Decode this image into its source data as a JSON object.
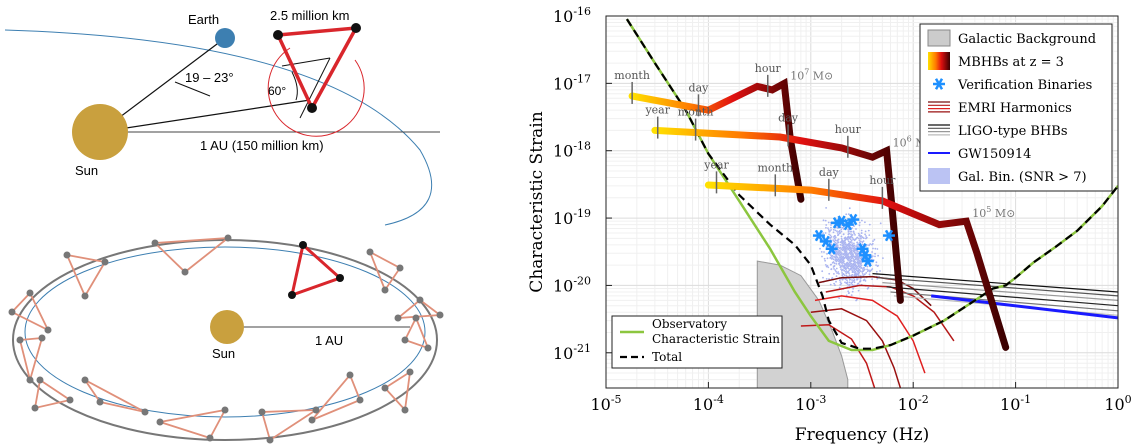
{
  "diagram": {
    "earth_label": "Earth",
    "arm_label": "2.5 million km",
    "angle_label": "19 – 23°",
    "triangle_angle": "60°",
    "sun_label": "Sun",
    "au_label_top": "1 AU (150 million km)",
    "sun_label_bottom": "Sun",
    "au_label_bottom": "1 AU",
    "colors": {
      "sun": "#c9a03e",
      "earth": "#3d7fb1",
      "constellation": "#d9262c",
      "orbit": "#3d7fb1",
      "ring": "#777777",
      "ring_triangles": "#e0907a"
    }
  },
  "chart_data": {
    "type": "line",
    "xlabel": "Frequency (Hz)",
    "ylabel": "Characteristic Strain",
    "x_scale": "log",
    "y_scale": "log",
    "xlim": [
      1e-05,
      1
    ],
    "ylim": [
      3e-22,
      1e-16
    ],
    "x_ticks": [
      {
        "v": 1e-05,
        "base": "10",
        "exp": "-5"
      },
      {
        "v": 0.0001,
        "base": "10",
        "exp": "-4"
      },
      {
        "v": 0.001,
        "base": "10",
        "exp": "-3"
      },
      {
        "v": 0.01,
        "base": "10",
        "exp": "-2"
      },
      {
        "v": 0.1,
        "base": "10",
        "exp": "-1"
      },
      {
        "v": 1,
        "base": "10",
        "exp": "0"
      }
    ],
    "y_ticks": [
      {
        "v": 1e-21,
        "base": "10",
        "exp": "-21"
      },
      {
        "v": 1e-20,
        "base": "10",
        "exp": "-20"
      },
      {
        "v": 1e-19,
        "base": "10",
        "exp": "-19"
      },
      {
        "v": 1e-18,
        "base": "10",
        "exp": "-18"
      },
      {
        "v": 1e-17,
        "base": "10",
        "exp": "-17"
      },
      {
        "v": 1e-16,
        "base": "10",
        "exp": "-16"
      }
    ],
    "grid": true,
    "legend_upper": {
      "placement": "top-right",
      "entries": [
        {
          "label": "Galactic Background",
          "symbol": "patch",
          "color": "#cccccc"
        },
        {
          "label": "MBHBs at z = 3",
          "symbol": "gradient"
        },
        {
          "label": "Verification Binaries",
          "symbol": "star",
          "color": "#1e90ff"
        },
        {
          "label": "EMRI Harmonics",
          "symbol": "lines-red"
        },
        {
          "label": "LIGO-type BHBs",
          "symbol": "lines-gray"
        },
        {
          "label": "GW150914",
          "symbol": "line",
          "color": "#1a1aff"
        },
        {
          "label": "Gal. Bin. (SNR > 7)",
          "symbol": "dots",
          "color": "#aab4f0"
        }
      ]
    },
    "legend_lower": {
      "placement": "bottom-left",
      "entries": [
        {
          "label": "Observatory",
          "label2": "Characteristic Strain",
          "symbol": "line",
          "color": "#8cc63f"
        },
        {
          "label": "Total",
          "symbol": "dashed",
          "color": "#000000"
        }
      ]
    },
    "mbhb_tracks": [
      {
        "label": "10",
        "label_exp": "7",
        "x": [
          1.8e-05,
          0.0001,
          0.0003,
          0.00042,
          0.00055,
          0.00063,
          0.0008
        ],
        "y": [
          6.5e-18,
          4e-18,
          9e-18,
          8e-18,
          1e-17,
          1.5e-18,
          1.9e-19
        ]
      },
      {
        "label": "10",
        "label_exp": "6",
        "x": [
          3e-05,
          0.0005,
          0.002,
          0.004,
          0.0055,
          0.0062,
          0.0075
        ],
        "y": [
          2e-18,
          1.6e-18,
          1.1e-18,
          8e-19,
          1e-18,
          1.5e-19,
          6e-21
        ]
      },
      {
        "label": "10",
        "label_exp": "5",
        "x": [
          0.0001,
          0.001,
          0.005,
          0.018,
          0.033,
          0.042,
          0.08
        ],
        "y": [
          3.1e-19,
          2.6e-19,
          1.8e-19,
          8e-20,
          9e-20,
          3e-20,
          1.2e-21
        ]
      }
    ],
    "time_markers": [
      {
        "text": "month",
        "x": 1.8e-05,
        "track": 0
      },
      {
        "text": "day",
        "x": 8e-05,
        "track": 0
      },
      {
        "text": "hour",
        "x": 0.00038,
        "track": 0
      },
      {
        "text": "year",
        "x": 3.2e-05,
        "track": 1
      },
      {
        "text": "month",
        "x": 7.5e-05,
        "track": 1
      },
      {
        "text": "day",
        "x": 0.0006,
        "track": 1
      },
      {
        "text": "hour",
        "x": 0.0023,
        "track": 1
      },
      {
        "text": "year",
        "x": 0.00012,
        "track": 2
      },
      {
        "text": "month",
        "x": 0.00045,
        "track": 2
      },
      {
        "text": "day",
        "x": 0.0015,
        "track": 2
      },
      {
        "text": "hour",
        "x": 0.005,
        "track": 2
      }
    ],
    "sensitivity_curve": {
      "x": [
        1.6e-05,
        3e-05,
        6e-05,
        0.0001,
        0.0002,
        0.0004,
        0.0007,
        0.001,
        0.0015,
        0.0025,
        0.004,
        0.006,
        0.01,
        0.02,
        0.04,
        0.06,
        0.08,
        0.1,
        0.15,
        0.25,
        0.4,
        0.7,
        1
      ],
      "y": [
        9e-17,
        2e-17,
        4e-18,
        9e-19,
        1.8e-19,
        3.5e-20,
        8e-21,
        3.5e-21,
        1.5e-21,
        1.1e-21,
        1.1e-21,
        1.3e-21,
        1.8e-21,
        3e-21,
        6e-21,
        9e-21,
        1e-20,
        1.3e-20,
        2.2e-20,
        3.8e-20,
        6.5e-20,
        1.5e-19,
        3e-19
      ]
    },
    "total_curve": {
      "x": [
        1.6e-05,
        3e-05,
        6e-05,
        0.0001,
        0.0002,
        0.0004,
        0.0007,
        0.001,
        0.0013,
        0.0015,
        0.002,
        0.003,
        0.004,
        0.006,
        0.01,
        0.02,
        0.04,
        0.06,
        0.08,
        0.1,
        0.15,
        0.25,
        0.4,
        0.7,
        1
      ],
      "y": [
        9e-17,
        2e-17,
        4e-18,
        9e-19,
        2.2e-19,
        8e-20,
        4e-20,
        2e-20,
        7e-21,
        3e-21,
        1.4e-21,
        1.15e-21,
        1.15e-21,
        1.3e-21,
        1.8e-21,
        3e-21,
        6e-21,
        9e-21,
        1e-20,
        1.3e-20,
        2.2e-20,
        3.8e-20,
        6.5e-20,
        1.5e-19,
        3e-19
      ]
    },
    "galactic_background": {
      "x": [
        0.0003,
        0.0003,
        0.0005,
        0.0008,
        0.0012,
        0.0016,
        0.002,
        0.0023,
        0.0023
      ],
      "y": [
        3e-22,
        2.3e-20,
        2e-20,
        1.4e-20,
        6e-21,
        2.2e-21,
        9e-22,
        4e-22,
        3e-22
      ]
    },
    "verification_binaries": {
      "x": [
        0.0012,
        0.0014,
        0.0016,
        0.0018,
        0.002,
        0.0023,
        0.0026,
        0.0032,
        0.0036,
        0.0058,
        0.0034
      ],
      "y": [
        5.5e-20,
        4.5e-20,
        3.5e-20,
        8.5e-20,
        9e-20,
        8e-20,
        9.5e-20,
        3.5e-20,
        2.3e-20,
        5.5e-20,
        2.8e-20
      ]
    },
    "emri_harmonics": [
      {
        "x": [
          0.0012,
          0.002,
          0.004,
          0.007,
          0.01,
          0.015
        ],
        "y": [
          1.1e-20,
          1.3e-20,
          1.35e-20,
          1.2e-20,
          9e-21,
          5e-21
        ]
      },
      {
        "x": [
          0.0014,
          0.003,
          0.006,
          0.01,
          0.016,
          0.025
        ],
        "y": [
          8e-21,
          1e-20,
          9.5e-21,
          7e-21,
          4e-21,
          1.5e-21
        ]
      },
      {
        "x": [
          0.0011,
          0.002,
          0.004,
          0.007,
          0.01,
          0.013
        ],
        "y": [
          6e-21,
          7e-21,
          6e-21,
          3.5e-21,
          1.5e-21,
          5e-22
        ]
      },
      {
        "x": [
          0.001,
          0.002,
          0.0035,
          0.005,
          0.0065,
          0.0075
        ],
        "y": [
          4e-21,
          4.5e-21,
          3e-21,
          1.5e-21,
          6e-22,
          3e-22
        ]
      },
      {
        "x": [
          0.0008,
          0.0015,
          0.0025,
          0.0035,
          0.0042
        ],
        "y": [
          2.5e-21,
          2.6e-21,
          1.6e-21,
          7e-22,
          3e-22
        ]
      }
    ],
    "ligo_bhbs": [
      {
        "x": [
          0.004,
          1
        ],
        "y": [
          1.5e-20,
          8e-21
        ]
      },
      {
        "x": [
          0.0045,
          1
        ],
        "y": [
          1.3e-20,
          7e-21
        ]
      },
      {
        "x": [
          0.005,
          1
        ],
        "y": [
          1.1e-20,
          6e-21
        ]
      },
      {
        "x": [
          0.0055,
          1
        ],
        "y": [
          9.5e-21,
          5e-21
        ]
      },
      {
        "x": [
          0.006,
          1
        ],
        "y": [
          8e-21,
          4.2e-21
        ]
      },
      {
        "x": [
          0.0065,
          1
        ],
        "y": [
          7e-21,
          3.6e-21
        ]
      }
    ],
    "gw150914": {
      "x": [
        0.015,
        1
      ],
      "y": [
        7e-21,
        3.3e-21
      ]
    }
  }
}
